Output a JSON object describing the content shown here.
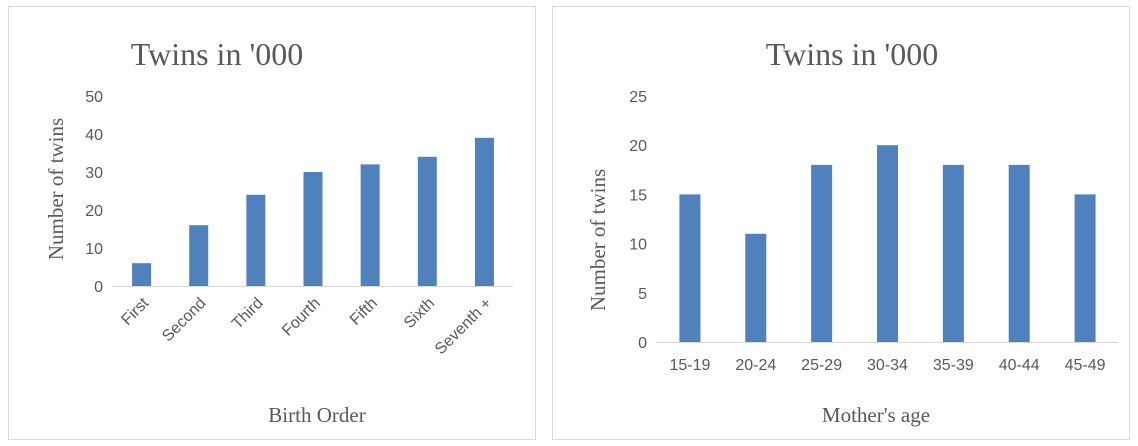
{
  "chart_data": [
    {
      "type": "bar",
      "title": "Twins in '000",
      "xlabel": "Birth Order",
      "ylabel": "Number of twins",
      "categories": [
        "First",
        "Second",
        "Third",
        "Fourth",
        "Fifth",
        "Sixth",
        "Seventh +"
      ],
      "values": [
        6,
        16,
        24,
        30,
        32,
        34,
        39
      ],
      "ylim": [
        0,
        50
      ],
      "yticks": [
        "0",
        "10",
        "20",
        "30",
        "40",
        "50"
      ],
      "grid": false,
      "bar_color": "#4f81bd"
    },
    {
      "type": "bar",
      "title": "Twins in '000",
      "xlabel": "Mother's age",
      "ylabel": "Number of twins",
      "categories": [
        "15-19",
        "20-24",
        "25-29",
        "30-34",
        "35-39",
        "40-44",
        "45-49"
      ],
      "values": [
        15,
        11,
        18,
        20,
        18,
        18,
        15
      ],
      "ylim": [
        0,
        25
      ],
      "yticks": [
        "0",
        "5",
        "10",
        "15",
        "20",
        "25"
      ],
      "grid": false,
      "bar_color": "#4f81bd"
    }
  ]
}
